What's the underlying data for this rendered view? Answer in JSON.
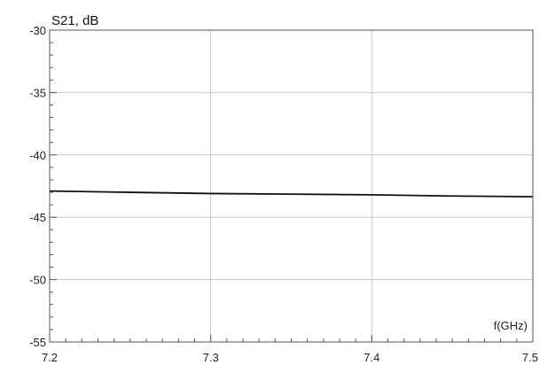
{
  "chart_data": {
    "type": "line",
    "title": "S21, dB",
    "xlabel": "f(GHz)",
    "ylabel": "S21, dB",
    "xlim": [
      7.2,
      7.5
    ],
    "ylim": [
      -55,
      -30
    ],
    "x_ticks": [
      7.2,
      7.3,
      7.4,
      7.5
    ],
    "x_tick_labels": [
      "7.2",
      "7.3",
      "7.4",
      "7.5"
    ],
    "y_ticks": [
      -30,
      -35,
      -40,
      -45,
      -50,
      -55
    ],
    "y_tick_labels": [
      "-30",
      "-35",
      "-40",
      "-45",
      "-50",
      "-55"
    ],
    "grid": true,
    "series": [
      {
        "color": "#111111",
        "x": [
          7.2,
          7.25,
          7.3,
          7.35,
          7.4,
          7.45,
          7.5
        ],
        "y": [
          -42.9,
          -43.0,
          -43.1,
          -43.15,
          -43.2,
          -43.3,
          -43.35
        ]
      }
    ]
  }
}
